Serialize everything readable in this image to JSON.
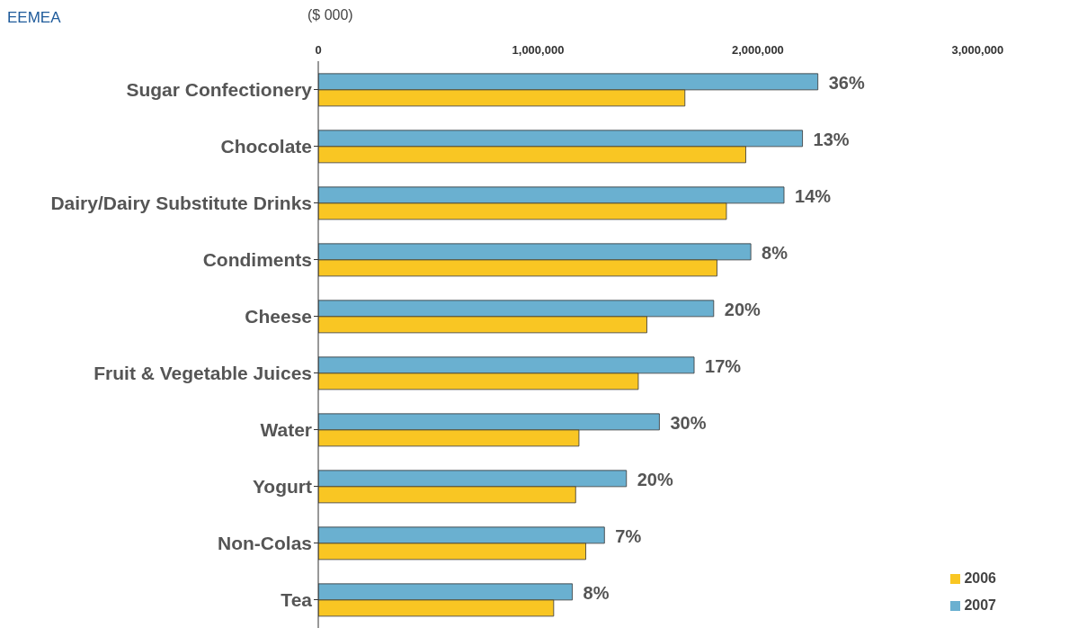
{
  "chart_data": {
    "type": "bar",
    "orientation": "horizontal",
    "title": "EEMEA",
    "xlabel": "($ 000)",
    "categories": [
      "Sugar Confectionery",
      "Chocolate",
      "Dairy/Dairy Substitute Drinks",
      "Condiments",
      "Cheese",
      "Fruit & Vegetable Juices",
      "Water",
      "Yogurt",
      "Non-Colas",
      "Tea"
    ],
    "series": [
      {
        "name": "2007",
        "color": "#6ab0d0",
        "values": [
          2273000,
          2203000,
          2119000,
          1968000,
          1799000,
          1710000,
          1552000,
          1402000,
          1302000,
          1156000
        ]
      },
      {
        "name": "2006",
        "color": "#f9c623",
        "values": [
          1668000,
          1945000,
          1857000,
          1814000,
          1495000,
          1456000,
          1186000,
          1171000,
          1217000,
          1071000
        ]
      }
    ],
    "xlim": [
      0,
      3000000
    ],
    "xticks": [
      {
        "value": 0,
        "label": "0"
      },
      {
        "value": 1000000,
        "label": "1,000,000"
      },
      {
        "value": 2000000,
        "label": "2,000,000"
      },
      {
        "value": 3000000,
        "label": "3,000,000"
      }
    ],
    "annotations": [
      {
        "text": "36%",
        "x": 2273000,
        "y": "Sugar Confectionery"
      },
      {
        "text": "13%",
        "x": 2203000,
        "y": "Chocolate"
      },
      {
        "text": "14%",
        "x": 2119000,
        "y": "Dairy/Dairy Substitute Drinks"
      },
      {
        "text": "8%",
        "x": 1968000,
        "y": "Condiments"
      },
      {
        "text": "20%",
        "x": 1799000,
        "y": "Cheese"
      },
      {
        "text": "17%",
        "x": 1710000,
        "y": "Fruit & Vegetable Juices"
      },
      {
        "text": "30%",
        "x": 1552000,
        "y": "Water"
      },
      {
        "text": "20%",
        "x": 1402000,
        "y": "Yogurt"
      },
      {
        "text": "7%",
        "x": 1302000,
        "y": "Non-Colas"
      },
      {
        "text": "8%",
        "x": 1156000,
        "y": "Tea"
      }
    ],
    "grid": false,
    "legend": "bottom right"
  }
}
